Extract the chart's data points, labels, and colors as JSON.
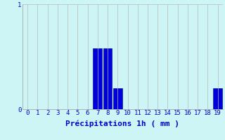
{
  "categories": [
    0,
    1,
    2,
    3,
    4,
    5,
    6,
    7,
    8,
    9,
    10,
    11,
    12,
    13,
    14,
    15,
    16,
    17,
    18,
    19
  ],
  "values": [
    0,
    0,
    0,
    0,
    0,
    0,
    0,
    0.58,
    0.58,
    0.2,
    0,
    0,
    0,
    0,
    0,
    0,
    0,
    0,
    0,
    0.2
  ],
  "bar_color": "#0000dd",
  "bar_edge_color": "#000088",
  "background_color": "#cef5f5",
  "grid_color": "#bbbbbb",
  "text_color": "#0000cc",
  "xlabel": "Précipitations 1h ( mm )",
  "ylim": [
    0,
    1.0
  ],
  "xlim": [
    -0.5,
    19.5
  ],
  "yticks": [
    0,
    1
  ],
  "xticks": [
    0,
    1,
    2,
    3,
    4,
    5,
    6,
    7,
    8,
    9,
    10,
    11,
    12,
    13,
    14,
    15,
    16,
    17,
    18,
    19
  ],
  "tick_fontsize": 6.5,
  "xlabel_fontsize": 8.0,
  "figwidth": 3.2,
  "figheight": 2.0,
  "dpi": 100
}
